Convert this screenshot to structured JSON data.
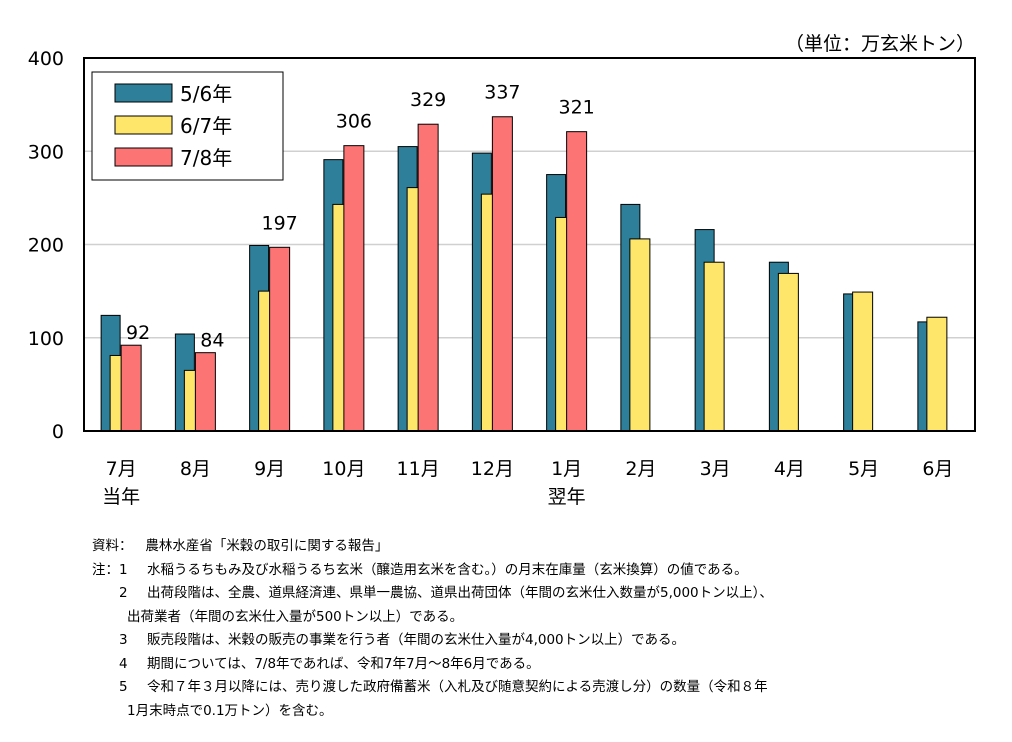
{
  "chart_data": {
    "type": "bar",
    "unit_label": "（単位：万玄米トン）",
    "categories": [
      "7月",
      "8月",
      "9月",
      "10月",
      "11月",
      "12月",
      "1月",
      "2月",
      "3月",
      "4月",
      "5月",
      "6月"
    ],
    "category_sublabels": [
      "当年",
      "",
      "",
      "",
      "",
      "",
      "翌年",
      "",
      "",
      "",
      "",
      ""
    ],
    "ylim": [
      0,
      400
    ],
    "yticks": [
      0,
      100,
      200,
      300,
      400
    ],
    "grid": true,
    "legend_position": "top-left",
    "series": [
      {
        "name": "5/6年",
        "color": "#2e7f99",
        "values": [
          124,
          104,
          199,
          291,
          305,
          298,
          275,
          243,
          216,
          181,
          147,
          117
        ]
      },
      {
        "name": "6/7年",
        "color": "#fde66a",
        "values": [
          81,
          65,
          150,
          243,
          261,
          254,
          229,
          206,
          181,
          169,
          149,
          122
        ]
      },
      {
        "name": "7/8年",
        "color": "#fd7474",
        "values": [
          92,
          84,
          197,
          306,
          329,
          337,
          321,
          null,
          null,
          null,
          null,
          null
        ],
        "data_labels": [
          "92",
          "84",
          "197",
          "306",
          "329",
          "337",
          "321"
        ]
      }
    ]
  },
  "notes": {
    "source_label": "資料：",
    "source": "農林水産省「米穀の取引に関する報告」",
    "note_label": "注：",
    "items": [
      {
        "num": "1",
        "text": "水稲うるちもみ及び水稲うるち玄米（醸造用玄米を含む。）の月末在庫量（玄米換算）の値である。"
      },
      {
        "num": "2",
        "text": "出荷段階は、全農、道県経済連、県単一農協、道県出荷団体（年間の玄米仕入数量が5,000トン以上）、",
        "cont": "出荷業者（年間の玄米仕入量が500トン以上）である。"
      },
      {
        "num": "3",
        "text": "販売段階は、米穀の販売の事業を行う者（年間の玄米仕入量が4,000トン以上）である。"
      },
      {
        "num": "4",
        "text": "期間については、7/8年であれば、令和7年7月～8年6月である。"
      },
      {
        "num": "5",
        "text": "令和７年３月以降には、売り渡した政府備蓄米（入札及び随意契約による売渡し分）の数量（令和８年",
        "cont": "1月末時点で0.1万トン）を含む。"
      }
    ]
  }
}
